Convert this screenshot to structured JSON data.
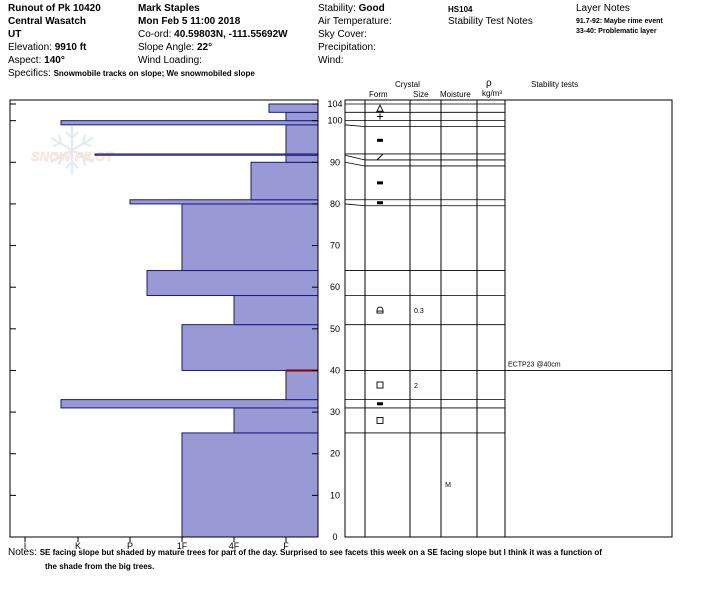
{
  "header": {
    "col1": {
      "location": "Runout of Pk 10420",
      "range": "Central Wasatch",
      "state": "UT",
      "elevation_label": "Elevation:",
      "elevation_value": "9910 ft",
      "aspect_label": "Aspect:",
      "aspect_value": "140°",
      "specifics_label": "Specifics:",
      "specifics_value": "Snowmobile tracks on slope; We snowmobiled slope"
    },
    "col2": {
      "observer": "Mark Staples",
      "datetime": "Mon Feb 5 11:00 2018",
      "coord_label": "Co-ord:",
      "coord_value": "40.59803N, -111.55692W",
      "slope_label": "Slope Angle:",
      "slope_value": "22°",
      "wind_loading_label": "Wind Loading:"
    },
    "col3": {
      "stability_label": "Stability:",
      "stability_value": "Good",
      "air_temp_label": "Air Temperature:",
      "sky_cover_label": "Sky Cover:",
      "precip_label": "Precipitation:",
      "wind_label": "Wind:"
    },
    "col4": {
      "code": "HS104",
      "stability_notes_title": "Stability Test Notes"
    },
    "col5": {
      "layer_notes_title": "Layer Notes",
      "notes": [
        "91.7-92: Maybe rime event",
        "33-40: Problematic layer"
      ]
    }
  },
  "watermark": "SNOW PILOT",
  "columns": {
    "crystal": "Crystal",
    "form": "Form",
    "size": "Size",
    "moisture": "Moisture",
    "rho": "ρ",
    "density_unit": "kg/m³",
    "stability_tests": "Stability tests"
  },
  "chart_data": {
    "type": "bar",
    "orientation": "horizontal",
    "description_axis": "hand hardness",
    "hardness_ticks": [
      "I",
      "K",
      "P",
      "1F",
      "4F",
      "F"
    ],
    "depth_ticks": [
      0,
      10,
      20,
      30,
      40,
      50,
      60,
      70,
      80,
      90,
      100,
      104
    ],
    "ylim": [
      0,
      104
    ],
    "colors": {
      "bar": "#9999d6",
      "bar_edge": "#1a1a7a",
      "highlight": "#8b0000"
    },
    "hardness_layers": [
      {
        "bottom": 0,
        "top": 25,
        "hardness": "1F"
      },
      {
        "bottom": 25,
        "top": 31,
        "hardness": "4F"
      },
      {
        "bottom": 31,
        "top": 33,
        "hardness": "K-"
      },
      {
        "bottom": 33,
        "top": 40,
        "hardness": "F"
      },
      {
        "bottom": 40,
        "top": 51,
        "hardness": "1F"
      },
      {
        "bottom": 51,
        "top": 58,
        "hardness": "4F"
      },
      {
        "bottom": 58,
        "top": 64,
        "hardness": "P+"
      },
      {
        "bottom": 64,
        "top": 80,
        "hardness": "1F"
      },
      {
        "bottom": 80,
        "top": 81,
        "hardness": "P"
      },
      {
        "bottom": 81,
        "top": 90,
        "hardness": "4F+"
      },
      {
        "bottom": 90,
        "top": 91.7,
        "hardness": "F"
      },
      {
        "bottom": 91.7,
        "top": 92,
        "hardness": "K+"
      },
      {
        "bottom": 92,
        "top": 99,
        "hardness": "F"
      },
      {
        "bottom": 99,
        "top": 100,
        "hardness": "K-"
      },
      {
        "bottom": 100,
        "top": 102,
        "hardness": "F"
      },
      {
        "bottom": 102,
        "top": 104,
        "hardness": "F-"
      }
    ],
    "highlight_depth": 40,
    "profile_layers": [
      {
        "top": 104,
        "bottom": 102,
        "form": "triangle-stripe-icon"
      },
      {
        "top": 102,
        "bottom": 100,
        "form": "plus-icon"
      },
      {
        "top": 100,
        "bottom": 99,
        "form": ""
      },
      {
        "top": 99,
        "bottom": 92,
        "form": "bar-icon"
      },
      {
        "top": 92,
        "bottom": 91.7,
        "form": "slash-icon"
      },
      {
        "top": 91.7,
        "bottom": 90,
        "form": ""
      },
      {
        "top": 90,
        "bottom": 81,
        "form": "bar-icon"
      },
      {
        "top": 81,
        "bottom": 80,
        "form": "bar-icon"
      },
      {
        "top": 80,
        "bottom": 64,
        "form": ""
      },
      {
        "top": 64,
        "bottom": 58,
        "form": ""
      },
      {
        "top": 58,
        "bottom": 51,
        "form": "rounded-faceted-icon",
        "size": "0.3"
      },
      {
        "top": 51,
        "bottom": 40,
        "form": ""
      },
      {
        "top": 40,
        "bottom": 33,
        "form": "square-icon",
        "size": "2"
      },
      {
        "top": 33,
        "bottom": 31,
        "form": "bar-icon"
      },
      {
        "top": 31,
        "bottom": 25,
        "form": "square-icon"
      },
      {
        "top": 25,
        "bottom": 0,
        "form": "",
        "moisture": "M"
      }
    ],
    "stability_tests": [
      {
        "depth": 40,
        "label": "ECTP23 @40cm"
      }
    ]
  },
  "notes": {
    "label": "Notes:",
    "line1": "SE facing slope but shaded by mature trees for part of the day. Surprised to see facets this week on a SE facing slope but I think it was a function of",
    "line2": "the shade from the big trees."
  }
}
